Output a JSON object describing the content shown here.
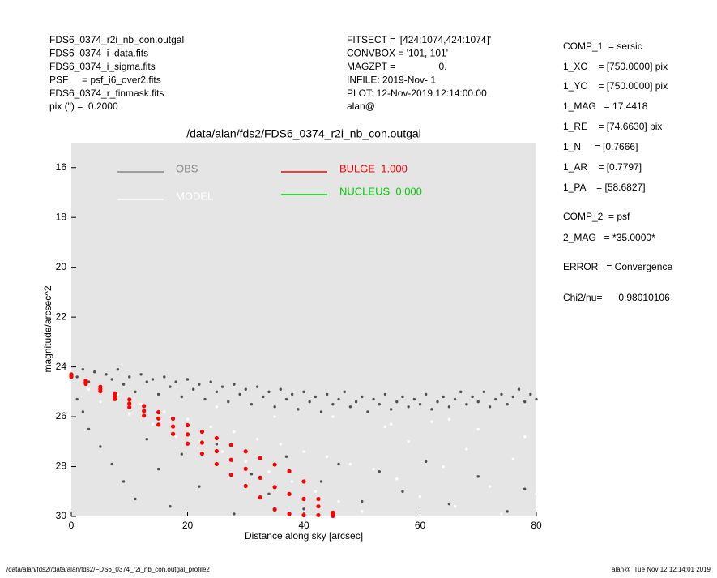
{
  "chart_data": {
    "type": "scatter",
    "title": "/data/alan/fds2/FDS6_0374_r2i_nb_con.outgal",
    "x_label": "Distance along sky [arcsec]",
    "y_label": "magnitude/arcsec^2",
    "header_left": [
      "FDS6_0374_r2i_nb_con.outgal",
      "FDS6_0374_i_data.fits",
      "FDS6_0374_i_sigma.fits",
      "PSF     = psf_i6_over2.fits",
      "FDS6_0374_r_finmask.fits",
      "pix (\") =  0.2000"
    ],
    "header_center": [
      "FITSECT = '[424:1074,424:1074]'",
      "CONVBOX = '101, 101'",
      "MAGZPT =                0.",
      "INFILE: 2019-Nov- 1",
      "PLOT: 12-Nov-2019 12:14:00.00",
      "alan@"
    ],
    "parameters": [
      "COMP_1  = sersic",
      "1_XC    = [750.0000] pix",
      "1_YC    = [750.0000] pix",
      "1_MAG   = 17.4418",
      "1_RE    = [74.6630] pix",
      "1_N     = [0.7666]",
      "1_AR    = [0.7797]",
      "1_PA    = [58.6827]",
      "COMP_2  = psf",
      "2_MAG   = *35.0000*",
      "ERROR   = Convergence",
      "Chi2/nu=      0.98010106"
    ],
    "footer_left": "/data/alan/fds2//data/alan/fds2/FDS6_0374_r2i_nb_con.outgal_profile2",
    "footer_right": "alan@  Tue Nov 12 12:14:01 2019",
    "xlim": [
      0,
      80
    ],
    "xticks": [
      0,
      20,
      40,
      60,
      80
    ],
    "ylim": [
      30,
      15
    ],
    "yticks": [
      16,
      18,
      20,
      22,
      24,
      26,
      28,
      30
    ],
    "background": "#e5e5e5",
    "series": [
      {
        "name": "OBS",
        "color": "#505050",
        "x": [
          1,
          2,
          3,
          4,
          5,
          6,
          7,
          8,
          9,
          10,
          11,
          12,
          13,
          14,
          15,
          16,
          17,
          18,
          19,
          20,
          21,
          22,
          23,
          24,
          25,
          26,
          27,
          28,
          29,
          30,
          31,
          32,
          33,
          34,
          35,
          36,
          37,
          38,
          39,
          40,
          41,
          42,
          43,
          44,
          45,
          46,
          47,
          48,
          49,
          50,
          51,
          52,
          53,
          54,
          55,
          56,
          57,
          58,
          59,
          60,
          61,
          62,
          63,
          64,
          65,
          66,
          67,
          68,
          69,
          70,
          71,
          72,
          73,
          74,
          75,
          76,
          77,
          78,
          79,
          80,
          1,
          2,
          3,
          5,
          7,
          9,
          11,
          13,
          15,
          17,
          19,
          22,
          25,
          28,
          31,
          34,
          37,
          40,
          43,
          46,
          50,
          53,
          57,
          61,
          65,
          70,
          75,
          78
        ],
        "values": [
          24.4,
          24.1,
          24.6,
          24.2,
          24.9,
          24.3,
          24.5,
          24.1,
          24.7,
          24.4,
          25.0,
          24.3,
          24.6,
          24.5,
          25.1,
          24.4,
          24.8,
          24.6,
          25.2,
          24.5,
          24.9,
          24.7,
          25.3,
          24.6,
          25.0,
          24.8,
          25.4,
          24.7,
          25.1,
          24.9,
          25.5,
          24.8,
          25.2,
          25.0,
          25.6,
          24.9,
          25.3,
          25.1,
          25.7,
          25.0,
          25.4,
          25.2,
          25.8,
          25.1,
          25.5,
          25.3,
          25.0,
          25.6,
          25.4,
          25.2,
          25.8,
          25.3,
          25.5,
          25.1,
          25.7,
          25.4,
          25.2,
          25.6,
          25.3,
          25.5,
          25.1,
          25.7,
          25.4,
          25.2,
          25.6,
          25.3,
          25.0,
          25.5,
          25.2,
          25.4,
          25.0,
          25.6,
          25.3,
          25.1,
          25.5,
          25.2,
          24.9,
          25.4,
          25.1,
          25.3,
          25.3,
          25.8,
          26.5,
          27.2,
          27.9,
          28.6,
          29.3,
          26.9,
          28.1,
          29.6,
          27.5,
          28.8,
          27.1,
          29.9,
          28.3,
          29.1,
          27.6,
          29.7,
          28.6,
          27.9,
          29.4,
          28.2,
          29.0,
          27.8,
          29.5,
          28.4,
          29.8,
          28.9
        ]
      },
      {
        "name": "MODEL",
        "color": "#ffffff",
        "x": [
          3,
          5,
          8,
          10,
          12,
          14,
          16,
          18,
          20,
          22,
          24,
          26,
          28,
          30,
          32,
          34,
          36,
          38,
          40,
          42,
          44,
          46,
          48,
          50,
          52,
          54,
          56,
          58,
          60,
          62,
          64,
          66,
          68,
          70,
          72,
          74,
          76,
          78,
          80,
          45,
          55,
          65,
          35,
          25
        ],
        "values": [
          24.9,
          25.4,
          25.1,
          25.9,
          25.5,
          26.3,
          25.8,
          26.8,
          26.1,
          27.0,
          26.4,
          27.4,
          26.6,
          27.8,
          26.9,
          28.2,
          27.1,
          28.6,
          27.4,
          29.0,
          27.6,
          29.4,
          27.9,
          29.8,
          28.1,
          26.4,
          28.5,
          27.0,
          29.2,
          26.2,
          28.0,
          29.6,
          27.3,
          26.5,
          28.8,
          29.9,
          27.7,
          26.8,
          29.1,
          26.0,
          26.3,
          26.1,
          26.0,
          25.6
        ]
      },
      {
        "name": "BULGE  1.000",
        "color": "#ff0000",
        "x": [
          0,
          0,
          0,
          2.5,
          2.5,
          2.5,
          5,
          5,
          5,
          7.5,
          7.5,
          7.5,
          10,
          10,
          10,
          12.5,
          12.5,
          12.5,
          15,
          15,
          15,
          17.5,
          17.5,
          17.5,
          20,
          20,
          20,
          22.5,
          22.5,
          22.5,
          25,
          25,
          25,
          27.5,
          27.5,
          27.5,
          30,
          30,
          30,
          32.5,
          32.5,
          32.5,
          35,
          35,
          35,
          37.5,
          37.5,
          37.5,
          40,
          40,
          40,
          42.5,
          42.5,
          42.5,
          45,
          45,
          45
        ],
        "values": [
          24.3,
          24.35,
          24.4,
          24.55,
          24.62,
          24.68,
          24.8,
          24.89,
          24.98,
          25.06,
          25.18,
          25.29,
          25.31,
          25.47,
          25.62,
          25.57,
          25.77,
          25.96,
          25.82,
          26.07,
          26.32,
          26.08,
          26.39,
          26.69,
          26.34,
          26.71,
          27.08,
          26.6,
          27.04,
          27.48,
          26.86,
          27.38,
          27.9,
          27.13,
          27.73,
          28.33,
          27.39,
          28.09,
          28.78,
          27.66,
          28.45,
          29.24,
          27.92,
          28.82,
          29.72,
          28.19,
          29.1,
          29.9,
          28.6,
          29.3,
          29.95,
          29.3,
          29.6,
          29.95,
          29.85,
          29.95,
          29.98
        ]
      },
      {
        "name": "NUCLEUS  0.000",
        "color": "#00cc00",
        "x": [],
        "values": []
      }
    ]
  }
}
